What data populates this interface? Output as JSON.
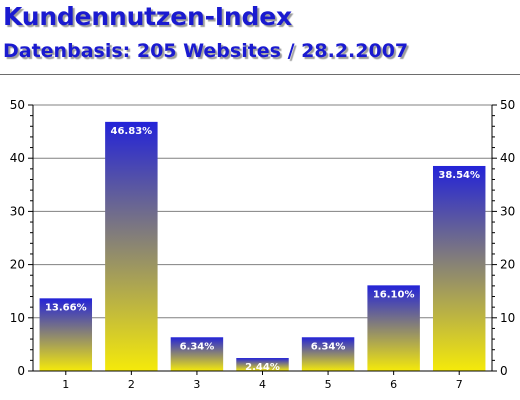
{
  "title": "Kundennutzen-Index",
  "subtitle": "Datenbasis: 205 Websites / 28.2.2007",
  "colors": {
    "title": "#1a1ad0",
    "bar_top": "#2323d8",
    "bar_bottom": "#f5ea0a",
    "grid": "#808080"
  },
  "chart_data": {
    "type": "bar",
    "categories": [
      "1",
      "2",
      "3",
      "4",
      "5",
      "6",
      "7"
    ],
    "values": [
      13.66,
      46.83,
      6.34,
      2.44,
      6.34,
      16.1,
      38.54
    ],
    "data_labels": [
      "13.66%",
      "46.83%",
      "6.34%",
      "2.44%",
      "6.34%",
      "16.10%",
      "38.54%"
    ],
    "ylim": [
      0,
      50
    ],
    "yticks": [
      0,
      10,
      20,
      30,
      40,
      50
    ],
    "ytick_labels": [
      "0",
      "10",
      "20",
      "30",
      "40",
      "50"
    ],
    "y_axis_both_sides": true,
    "grid": true
  }
}
